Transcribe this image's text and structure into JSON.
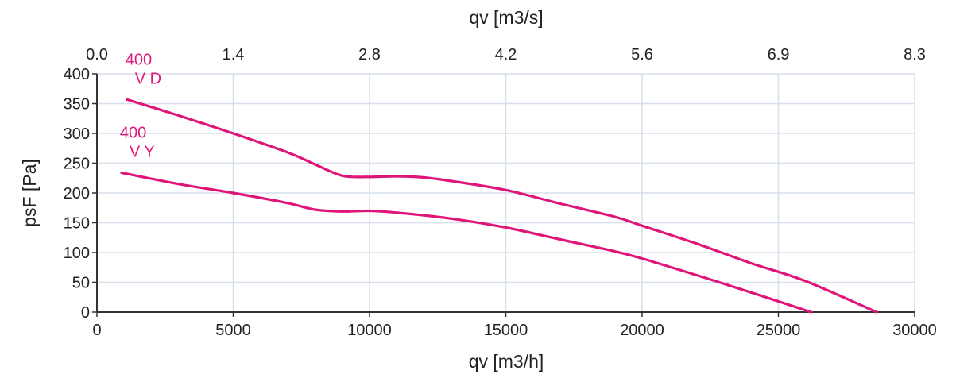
{
  "chart_data": {
    "type": "line",
    "xlabel": "qv [m3/h]",
    "ylabel": "psF [Pa]",
    "x2label": "qv [m3/s]",
    "xlim": [
      0,
      30000
    ],
    "ylim": [
      0,
      400
    ],
    "x_ticks": [
      "0",
      "5000",
      "10000",
      "15000",
      "20000",
      "25000",
      "30000"
    ],
    "x_tick_values": [
      0,
      5000,
      10000,
      15000,
      20000,
      25000,
      30000
    ],
    "y_ticks": [
      "0",
      "50",
      "100",
      "150",
      "200",
      "250",
      "300",
      "350",
      "400"
    ],
    "y_tick_values": [
      0,
      50,
      100,
      150,
      200,
      250,
      300,
      350,
      400
    ],
    "x2_ticks": [
      "0.0",
      "1.4",
      "2.8",
      "4.2",
      "5.6",
      "6.9",
      "8.3"
    ],
    "x2_tick_values": [
      0,
      5000,
      10000,
      15000,
      20000,
      25000,
      30000
    ],
    "grid": true,
    "series_color": "#e0157a",
    "series": [
      {
        "label_line1": "400",
        "label_line2": "V D",
        "x": [
          1100,
          3000,
          5000,
          7000,
          8000,
          9000,
          10000,
          11000,
          12000,
          13000,
          15000,
          17000,
          19000,
          20000,
          22000,
          24000,
          26000,
          28600
        ],
        "values": [
          357,
          330,
          300,
          268,
          248,
          229,
          227,
          228,
          226,
          220,
          205,
          182,
          160,
          145,
          115,
          82,
          52,
          0
        ]
      },
      {
        "label_line1": "400",
        "label_line2": "V Y",
        "x": [
          900,
          3000,
          5000,
          7000,
          8000,
          9000,
          10000,
          11000,
          13000,
          15000,
          17000,
          19000,
          20000,
          22000,
          24000,
          26200
        ],
        "values": [
          234,
          215,
          200,
          183,
          172,
          169,
          170,
          167,
          157,
          142,
          122,
          102,
          90,
          62,
          33,
          0
        ]
      }
    ]
  }
}
